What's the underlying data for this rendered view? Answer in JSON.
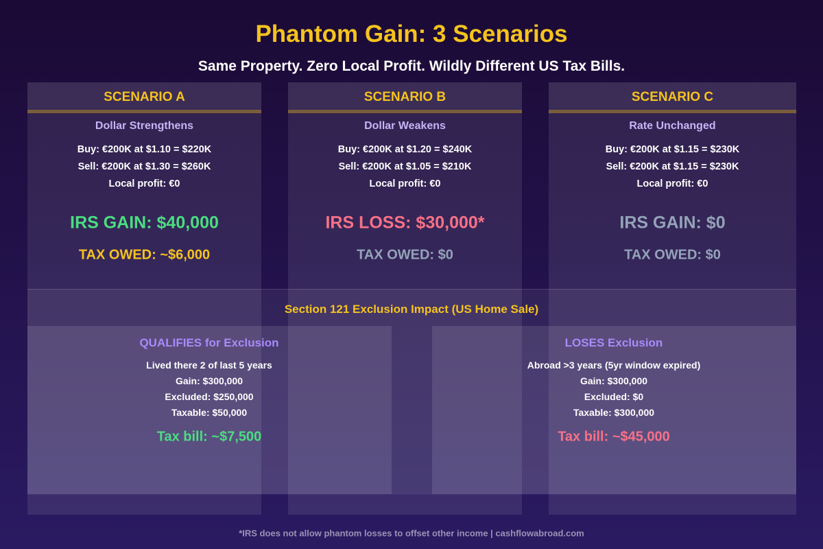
{
  "header": {
    "title": "Phantom Gain: 3 Scenarios",
    "subtitle": "Same Property. Zero Local Profit. Wildly Different US Tax Bills."
  },
  "scenarios": [
    {
      "label": "SCENARIO A",
      "subtitle": "Dollar Strengthens",
      "lines": [
        "Buy: €200K at $1.10 = $220K",
        "Sell: €200K at $1.30 = $260K",
        "Local profit: €0"
      ],
      "result": "IRS GAIN: $40,000",
      "tax": "TAX OWED: ~$6,000"
    },
    {
      "label": "SCENARIO B",
      "subtitle": "Dollar Weakens",
      "lines": [
        "Buy: €200K at $1.20 = $240K",
        "Sell: €200K at $1.05 = $210K",
        "Local profit: €0"
      ],
      "result": "IRS LOSS: $30,000*",
      "tax": "TAX OWED: $0"
    },
    {
      "label": "SCENARIO C",
      "subtitle": "Rate Unchanged",
      "lines": [
        "Buy: €200K at $1.15 = $230K",
        "Sell: €200K at $1.15 = $230K",
        "Local profit: €0"
      ],
      "result": "IRS GAIN: $0",
      "tax": "TAX OWED: $0"
    }
  ],
  "section121": {
    "title": "Section 121 Exclusion Impact (US Home Sale)",
    "boxes": [
      {
        "title": "QUALIFIES for Exclusion",
        "lines": [
          "Lived there 2 of last 5 years",
          "Gain: $300,000",
          "Excluded: $250,000",
          "Taxable: $50,000"
        ],
        "tax_bill": "Tax bill: ~$7,500"
      },
      {
        "title": "LOSES Exclusion",
        "lines": [
          "Abroad >3 years (5yr window expired)",
          "Gain: $300,000",
          "Excluded: $0",
          "Taxable: $300,000"
        ],
        "tax_bill": "Tax bill: ~$45,000"
      }
    ]
  },
  "footer": "*IRS does not allow phantom losses to offset other income | cashflowabroad.com"
}
